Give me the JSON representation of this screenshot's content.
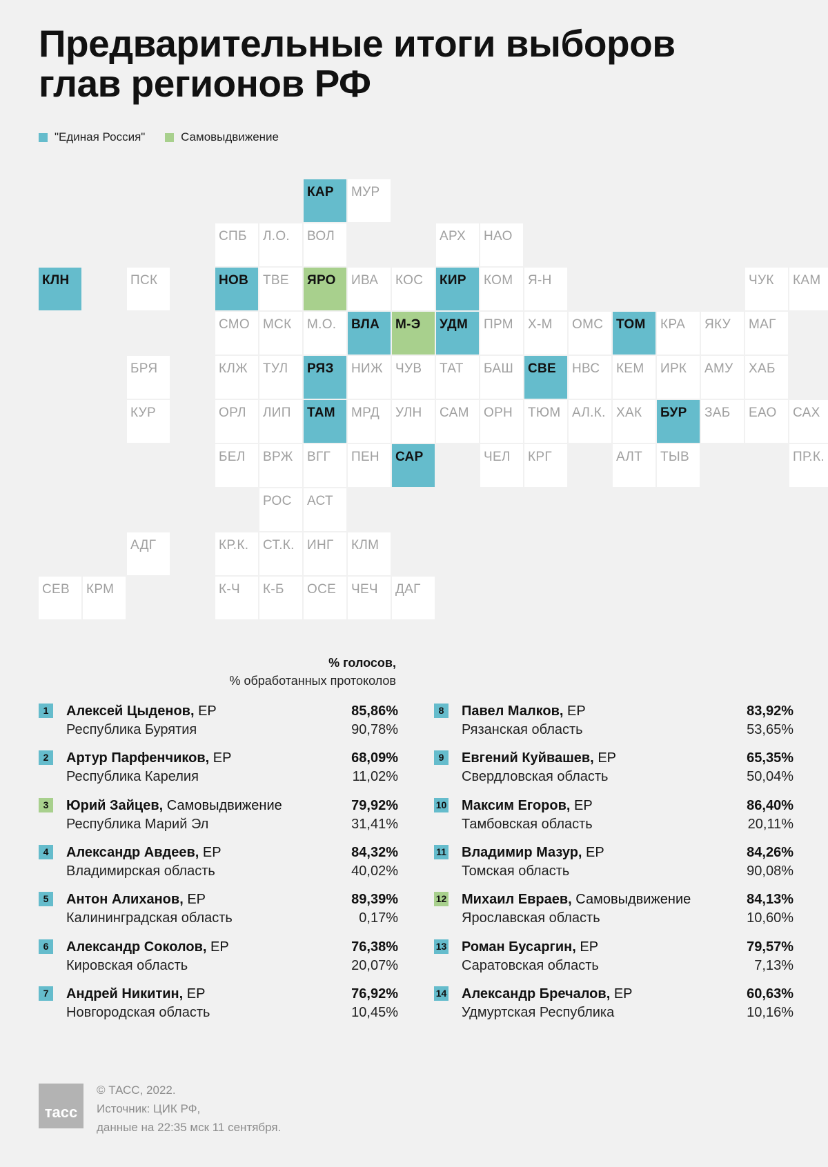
{
  "title": [
    "Предварительные итоги выборов",
    "глав регионов РФ"
  ],
  "legend": [
    {
      "label": "\"Единая Россия\"",
      "color": "#65bccc"
    },
    {
      "label": "Самовыдвижение",
      "color": "#a8d08d"
    }
  ],
  "map_rows": [
    [
      "",
      "",
      "",
      "",
      "",
      "",
      "КАР",
      "МУР",
      "",
      "",
      "",
      "",
      "",
      "",
      "",
      "",
      "",
      ""
    ],
    [
      "",
      "",
      "",
      "",
      "СПБ",
      "Л.О.",
      "ВОЛ",
      "",
      "",
      "АРХ",
      "НАО",
      "",
      "",
      "",
      "",
      "",
      "",
      ""
    ],
    [
      "КЛН",
      "",
      "ПСК",
      "",
      "НОВ",
      "ТВЕ",
      "ЯРО",
      "ИВА",
      "КОС",
      "КИР",
      "КОМ",
      "Я-Н",
      "",
      "",
      "",
      "",
      "ЧУК",
      "КАМ"
    ],
    [
      "",
      "",
      "",
      "",
      "СМО",
      "МСК",
      "М.О.",
      "ВЛА",
      "М-Э",
      "УДМ",
      "ПРМ",
      "Х-М",
      "ОМС",
      "ТОМ",
      "КРА",
      "ЯКУ",
      "МАГ",
      ""
    ],
    [
      "",
      "",
      "БРЯ",
      "",
      "КЛЖ",
      "ТУЛ",
      "РЯЗ",
      "НИЖ",
      "ЧУВ",
      "ТАТ",
      "БАШ",
      "СВЕ",
      "НВС",
      "КЕМ",
      "ИРК",
      "АМУ",
      "ХАБ",
      ""
    ],
    [
      "",
      "",
      "КУР",
      "",
      "ОРЛ",
      "ЛИП",
      "ТАМ",
      "МРД",
      "УЛН",
      "САМ",
      "ОРН",
      "ТЮМ",
      "АЛ.К.",
      "ХАК",
      "БУР",
      "ЗАБ",
      "ЕАО",
      "САХ"
    ],
    [
      "",
      "",
      "",
      "",
      "БЕЛ",
      "ВРЖ",
      "ВГГ",
      "ПЕН",
      "САР",
      "",
      "ЧЕЛ",
      "КРГ",
      "",
      "АЛТ",
      "ТЫВ",
      "",
      "",
      "ПР.К."
    ],
    [
      "",
      "",
      "",
      "",
      "",
      "РОС",
      "АСТ",
      "",
      "",
      "",
      "",
      "",
      "",
      "",
      "",
      "",
      "",
      ""
    ],
    [
      "",
      "",
      "АДГ",
      "",
      "КР.К.",
      "СТ.К.",
      "ИНГ",
      "КЛМ",
      "",
      "",
      "",
      "",
      "",
      "",
      "",
      "",
      "",
      ""
    ],
    [
      "СЕВ",
      "КРМ",
      "",
      "",
      "К-Ч",
      "К-Б",
      "ОСЕ",
      "ЧЕЧ",
      "ДАГ",
      "",
      "",
      "",
      "",
      "",
      "",
      "",
      "",
      ""
    ]
  ],
  "map_er": [
    "КАР",
    "КЛН",
    "НОВ",
    "КИР",
    "ВЛА",
    "УДМ",
    "ТОМ",
    "РЯЗ",
    "СВЕ",
    "ТАМ",
    "БУР",
    "САР"
  ],
  "map_sam": [
    "ЯРО",
    "М-Э"
  ],
  "results_header": {
    "line1": "% голосов,",
    "line2": "% обработанных протоколов"
  },
  "results": [
    {
      "num": "1",
      "name": "Алексей Цыденов,",
      "party": "ЕР",
      "region": "Республика Бурятия",
      "votes": "85,86%",
      "protocols": "90,78%",
      "type": "er"
    },
    {
      "num": "2",
      "name": "Артур Парфенчиков,",
      "party": "ЕР",
      "region": "Республика Карелия",
      "votes": "68,09%",
      "protocols": "11,02%",
      "type": "er"
    },
    {
      "num": "3",
      "name": "Юрий Зайцев,",
      "party": "Самовыдвижение",
      "region": "Республика Марий Эл",
      "votes": "79,92%",
      "protocols": "31,41%",
      "type": "sam"
    },
    {
      "num": "4",
      "name": "Александр Авдеев,",
      "party": "ЕР",
      "region": "Владимирская область",
      "votes": "84,32%",
      "protocols": "40,02%",
      "type": "er"
    },
    {
      "num": "5",
      "name": "Антон Алиханов,",
      "party": "ЕР",
      "region": "Калининградская область",
      "votes": "89,39%",
      "protocols": "0,17%",
      "type": "er"
    },
    {
      "num": "6",
      "name": "Александр Соколов,",
      "party": "ЕР",
      "region": "Кировская область",
      "votes": "76,38%",
      "protocols": "20,07%",
      "type": "er"
    },
    {
      "num": "7",
      "name": "Андрей Никитин,",
      "party": "ЕР",
      "region": "Новгородская область",
      "votes": "76,92%",
      "protocols": "10,45%",
      "type": "er"
    },
    {
      "num": "8",
      "name": "Павел Малков,",
      "party": "ЕР",
      "region": "Рязанская область",
      "votes": "83,92%",
      "protocols": "53,65%",
      "type": "er"
    },
    {
      "num": "9",
      "name": "Евгений Куйвашев,",
      "party": "ЕР",
      "region": "Свердловская область",
      "votes": "65,35%",
      "protocols": "50,04%",
      "type": "er"
    },
    {
      "num": "10",
      "name": "Максим Егоров,",
      "party": "ЕР",
      "region": "Тамбовская область",
      "votes": "86,40%",
      "protocols": "20,11%",
      "type": "er"
    },
    {
      "num": "11",
      "name": "Владимир Мазур,",
      "party": "ЕР",
      "region": "Томская область",
      "votes": "84,26%",
      "protocols": "90,08%",
      "type": "er"
    },
    {
      "num": "12",
      "name": "Михаил Евраев,",
      "party": "Самовыдвижение",
      "region": "Ярославская область",
      "votes": "84,13%",
      "protocols": "10,60%",
      "type": "sam"
    },
    {
      "num": "13",
      "name": "Роман Бусаргин,",
      "party": "ЕР",
      "region": "Саратовская область",
      "votes": "79,57%",
      "protocols": "7,13%",
      "type": "er"
    },
    {
      "num": "14",
      "name": "Александр Бречалов,",
      "party": "ЕР",
      "region": "Удмуртская Республика",
      "votes": "60,63%",
      "protocols": "10,16%",
      "type": "er"
    }
  ],
  "footer": {
    "logo": "тасс",
    "lines": [
      "© ТАСС, 2022.",
      "Источник: ЦИК РФ,",
      "данные на 22:35 мск 11 сентября."
    ]
  }
}
